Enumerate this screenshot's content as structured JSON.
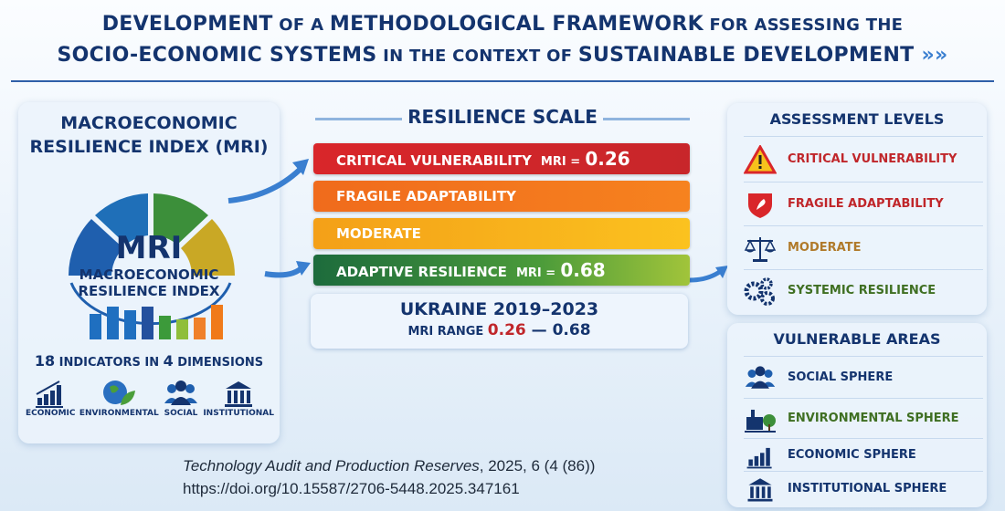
{
  "title": {
    "line1_a": "DEVELOPMENT",
    "line1_b": " OF A ",
    "line1_c": "METHODOLOGICAL FRAMEWORK",
    "line1_d": " FOR ASSESSING THE",
    "line2_a": "SOCIO-ECONOMIC SYSTEMS",
    "line2_b": " IN THE CONTEXT OF ",
    "line2_c": "SUSTAINABLE DEVELOPMENT",
    "line2_d": " »»"
  },
  "left_panel": {
    "heading": "MACROECONOMIC RESILIENCE INDEX (MRI)",
    "mri": "MRI",
    "mri_sub1": "MACROECONOMIC",
    "mri_sub2": "RESILIENCE INDEX",
    "ind_n1": "18",
    "ind_t1": " INDICATORS IN ",
    "ind_n2": "4",
    "ind_t2": " DIMENSIONS",
    "dimensions": [
      {
        "label": "ECONOMIC",
        "icon": "economic-chart-icon"
      },
      {
        "label": "ENVIRONMENTAL",
        "icon": "globe-leaf-icon"
      },
      {
        "label": "SOCIAL",
        "icon": "people-icon"
      },
      {
        "label": "INSTITUTIONAL",
        "icon": "institution-icon"
      }
    ]
  },
  "scale": {
    "heading": "RESILIENCE SCALE",
    "levels": [
      {
        "label": "CRITICAL VULNERABILITY",
        "mri_label": "MRI =",
        "value": "0.26",
        "color": "#d9262a"
      },
      {
        "label": "FRAGILE ADAPTABILITY",
        "color": "#f06b1c"
      },
      {
        "label": "MODERATE",
        "color": "#f4a018"
      },
      {
        "label": "ADAPTIVE RESILIENCE",
        "mri_label": "MRI =",
        "value": "0.68",
        "color": "#2f7d3a"
      }
    ],
    "country": "UKRAINE 2019–2023",
    "range_label": "MRI RANGE",
    "range_min": "0.26",
    "range_sep": " — ",
    "range_max": "0.68"
  },
  "assessment": {
    "heading": "ASSESSMENT LEVELS",
    "items": [
      {
        "label": "CRITICAL VULNERABILITY",
        "icon": "warning-icon",
        "color": "#c0262a"
      },
      {
        "label": "FRAGILE ADAPTABILITY",
        "icon": "shield-icon",
        "color": "#c0262a"
      },
      {
        "label": "MODERATE",
        "icon": "scales-icon",
        "color": "#b07a2a"
      },
      {
        "label": "SYSTEMIC RESILIENCE",
        "icon": "gears-icon",
        "color": "#3f6f22"
      }
    ]
  },
  "vulnerable": {
    "heading": "VULNERABLE AREAS",
    "items": [
      {
        "label": "SOCIAL SPHERE",
        "icon": "people-icon",
        "color": "#14346e"
      },
      {
        "label": "ENVIRONMENTAL SPHERE",
        "icon": "factory-tree-icon",
        "color": "#3f6f22"
      },
      {
        "label": "ECONOMIC SPHERE",
        "icon": "economic-chart-icon",
        "color": "#14346e"
      },
      {
        "label": "INSTITUTIONAL SPHERE",
        "icon": "institution-icon",
        "color": "#14346e"
      }
    ]
  },
  "citation": {
    "journal": "Technology Audit and Production Reserves",
    "details": ", 2025, 6 (4 (86))",
    "doi": "https://doi.org/10.15587/2706-5448.2025.347161"
  }
}
